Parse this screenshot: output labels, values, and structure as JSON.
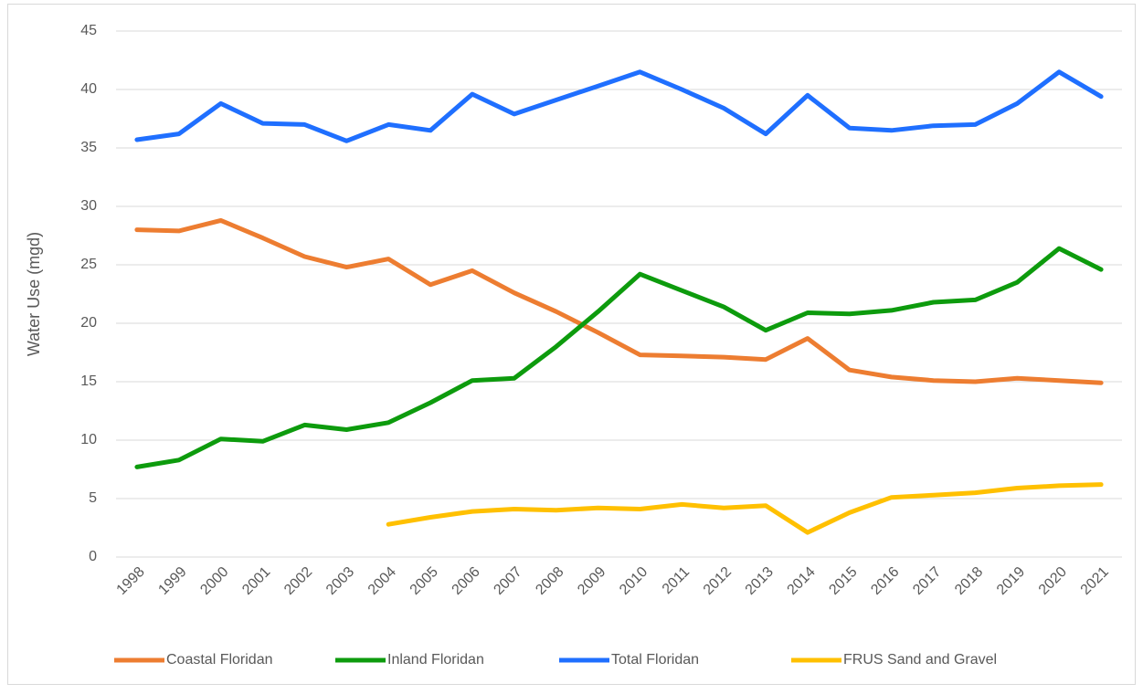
{
  "chart_data": {
    "type": "line",
    "y_label": "Water Use (mgd)",
    "categories": [
      "1998",
      "1999",
      "2000",
      "2001",
      "2002",
      "2003",
      "2004",
      "2005",
      "2006",
      "2007",
      "2008",
      "2009",
      "2010",
      "2011",
      "2012",
      "2013",
      "2014",
      "2015",
      "2016",
      "2017",
      "2018",
      "2019",
      "2020",
      "2021"
    ],
    "series": [
      {
        "name": "Coastal Floridan",
        "color": "#ed7d31",
        "values": [
          28.0,
          27.9,
          28.8,
          27.3,
          25.7,
          24.8,
          25.5,
          23.3,
          24.5,
          22.6,
          21.0,
          19.2,
          17.3,
          17.2,
          17.1,
          16.9,
          18.7,
          16.0,
          15.4,
          15.1,
          15.0,
          15.3,
          15.1,
          14.9
        ]
      },
      {
        "name": "Inland Floridan",
        "color": "#0d9b0d",
        "values": [
          7.7,
          8.3,
          10.1,
          9.9,
          11.3,
          10.9,
          11.5,
          13.2,
          15.1,
          15.3,
          18.0,
          21.0,
          24.2,
          22.8,
          21.4,
          19.4,
          20.9,
          20.8,
          21.1,
          21.8,
          22.0,
          23.5,
          26.4,
          24.6
        ]
      },
      {
        "name": "Total Floridan",
        "color": "#1f6fff",
        "values": [
          35.7,
          36.2,
          38.8,
          37.1,
          37.0,
          35.6,
          37.0,
          36.5,
          39.6,
          37.9,
          39.1,
          40.3,
          41.5,
          40.0,
          38.4,
          36.2,
          39.5,
          36.7,
          36.5,
          36.9,
          37.0,
          38.8,
          41.5,
          39.4
        ]
      },
      {
        "name": "FRUS Sand and Gravel",
        "color": "#ffc000",
        "values": [
          null,
          null,
          null,
          null,
          null,
          null,
          2.8,
          3.4,
          3.9,
          4.1,
          4.0,
          4.2,
          4.1,
          4.5,
          4.2,
          4.4,
          2.1,
          3.8,
          5.1,
          5.3,
          5.5,
          5.9,
          6.1,
          6.2
        ]
      }
    ],
    "ylim": [
      0,
      45
    ],
    "yticks": [
      0,
      5,
      10,
      15,
      20,
      25,
      30,
      35,
      40,
      45
    ],
    "grid": true,
    "legend": "bottom"
  }
}
